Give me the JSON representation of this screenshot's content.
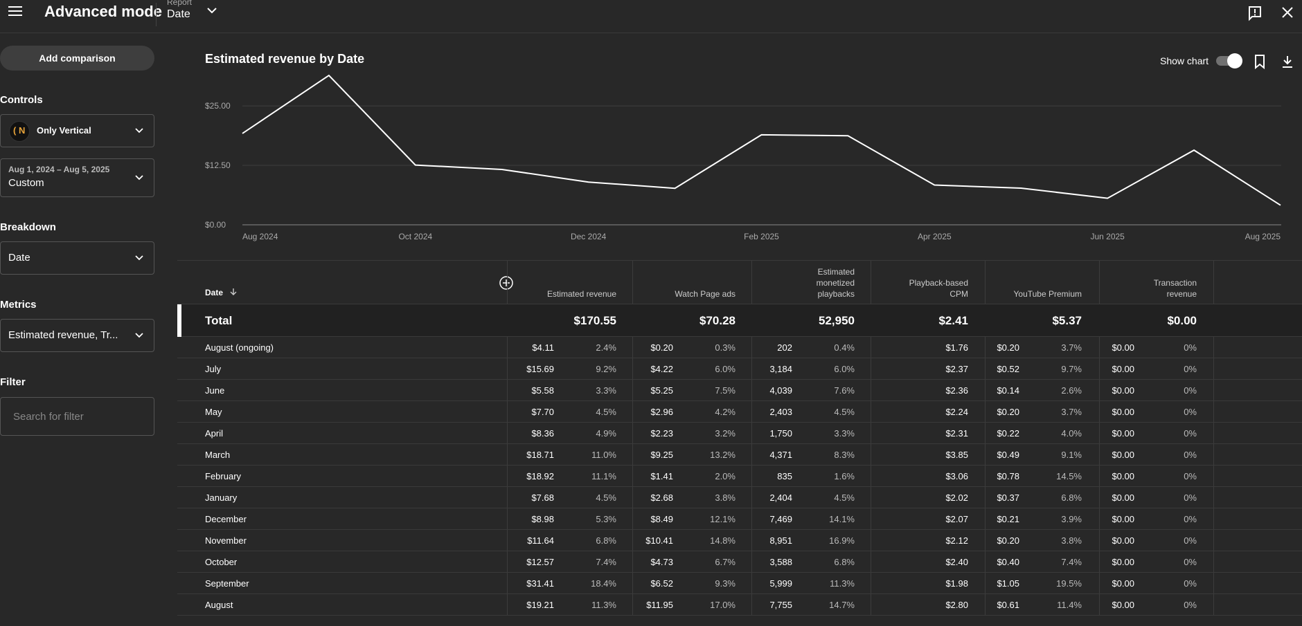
{
  "header": {
    "title": "Advanced mode",
    "report_label": "Report",
    "report_value": "Date"
  },
  "sidebar": {
    "add_comparison": "Add comparison",
    "controls_label": "Controls",
    "channel_name": "Only Vertical",
    "date_range_sub": "Aug 1, 2024 – Aug 5, 2025",
    "date_range_value": "Custom",
    "breakdown_label": "Breakdown",
    "breakdown_value": "Date",
    "metrics_label": "Metrics",
    "metrics_value": "Estimated revenue, Tr...",
    "filter_label": "Filter",
    "filter_placeholder": "Search for filter"
  },
  "chart_header": {
    "title": "Estimated revenue by Date",
    "show_chart": "Show chart"
  },
  "chart_data": {
    "type": "line",
    "title": "Estimated revenue by Date",
    "x": [
      "Aug 2024",
      "Sep 2024",
      "Oct 2024",
      "Nov 2024",
      "Dec 2024",
      "Jan 2025",
      "Feb 2025",
      "Mar 2025",
      "Apr 2025",
      "May 2025",
      "Jun 2025",
      "Jul 2025",
      "Aug 2025"
    ],
    "series": [
      {
        "values": [
          19.21,
          31.41,
          12.57,
          11.64,
          8.98,
          7.68,
          18.92,
          18.71,
          8.36,
          7.7,
          5.58,
          15.69,
          4.11
        ]
      }
    ],
    "x_tick_labels": [
      "Aug 2024",
      "Oct 2024",
      "Dec 2024",
      "Feb 2025",
      "Apr 2025",
      "Jun 2025",
      "Aug 2025"
    ],
    "y_tick_labels": [
      "$0.00",
      "$12.50",
      "$25.00"
    ],
    "y_ticks": [
      0,
      12.5,
      25
    ],
    "ylim": [
      0,
      31.41
    ],
    "grid": true,
    "line_color": "#ffffff"
  },
  "table": {
    "headers": {
      "date": "Date",
      "estimated_revenue": "Estimated revenue",
      "watch_page_ads": "Watch Page ads",
      "monetized_1": "Estimated",
      "monetized_2": "monetized",
      "monetized_3": "playbacks",
      "cpm_1": "Playback-based",
      "cpm_2": "CPM",
      "premium": "YouTube Premium",
      "transaction_1": "Transaction",
      "transaction_2": "revenue"
    },
    "total": {
      "label": "Total",
      "revenue": "$170.55",
      "ads": "$70.28",
      "playbacks": "52,950",
      "cpm": "$2.41",
      "premium": "$5.37",
      "transaction": "$0.00"
    },
    "rows": [
      {
        "date": "August (ongoing)",
        "revenue": "$4.11",
        "revenue_pct": "2.4%",
        "ads": "$0.20",
        "ads_pct": "0.3%",
        "playbacks": "202",
        "playbacks_pct": "0.4%",
        "cpm": "$1.76",
        "premium": "$0.20",
        "premium_pct": "3.7%",
        "transaction": "$0.00",
        "transaction_pct": "0%"
      },
      {
        "date": "July",
        "revenue": "$15.69",
        "revenue_pct": "9.2%",
        "ads": "$4.22",
        "ads_pct": "6.0%",
        "playbacks": "3,184",
        "playbacks_pct": "6.0%",
        "cpm": "$2.37",
        "premium": "$0.52",
        "premium_pct": "9.7%",
        "transaction": "$0.00",
        "transaction_pct": "0%"
      },
      {
        "date": "June",
        "revenue": "$5.58",
        "revenue_pct": "3.3%",
        "ads": "$5.25",
        "ads_pct": "7.5%",
        "playbacks": "4,039",
        "playbacks_pct": "7.6%",
        "cpm": "$2.36",
        "premium": "$0.14",
        "premium_pct": "2.6%",
        "transaction": "$0.00",
        "transaction_pct": "0%"
      },
      {
        "date": "May",
        "revenue": "$7.70",
        "revenue_pct": "4.5%",
        "ads": "$2.96",
        "ads_pct": "4.2%",
        "playbacks": "2,403",
        "playbacks_pct": "4.5%",
        "cpm": "$2.24",
        "premium": "$0.20",
        "premium_pct": "3.7%",
        "transaction": "$0.00",
        "transaction_pct": "0%"
      },
      {
        "date": "April",
        "revenue": "$8.36",
        "revenue_pct": "4.9%",
        "ads": "$2.23",
        "ads_pct": "3.2%",
        "playbacks": "1,750",
        "playbacks_pct": "3.3%",
        "cpm": "$2.31",
        "premium": "$0.22",
        "premium_pct": "4.0%",
        "transaction": "$0.00",
        "transaction_pct": "0%"
      },
      {
        "date": "March",
        "revenue": "$18.71",
        "revenue_pct": "11.0%",
        "ads": "$9.25",
        "ads_pct": "13.2%",
        "playbacks": "4,371",
        "playbacks_pct": "8.3%",
        "cpm": "$3.85",
        "premium": "$0.49",
        "premium_pct": "9.1%",
        "transaction": "$0.00",
        "transaction_pct": "0%"
      },
      {
        "date": "February",
        "revenue": "$18.92",
        "revenue_pct": "11.1%",
        "ads": "$1.41",
        "ads_pct": "2.0%",
        "playbacks": "835",
        "playbacks_pct": "1.6%",
        "cpm": "$3.06",
        "premium": "$0.78",
        "premium_pct": "14.5%",
        "transaction": "$0.00",
        "transaction_pct": "0%"
      },
      {
        "date": "January",
        "revenue": "$7.68",
        "revenue_pct": "4.5%",
        "ads": "$2.68",
        "ads_pct": "3.8%",
        "playbacks": "2,404",
        "playbacks_pct": "4.5%",
        "cpm": "$2.02",
        "premium": "$0.37",
        "premium_pct": "6.8%",
        "transaction": "$0.00",
        "transaction_pct": "0%"
      },
      {
        "date": "December",
        "revenue": "$8.98",
        "revenue_pct": "5.3%",
        "ads": "$8.49",
        "ads_pct": "12.1%",
        "playbacks": "7,469",
        "playbacks_pct": "14.1%",
        "cpm": "$2.07",
        "premium": "$0.21",
        "premium_pct": "3.9%",
        "transaction": "$0.00",
        "transaction_pct": "0%"
      },
      {
        "date": "November",
        "revenue": "$11.64",
        "revenue_pct": "6.8%",
        "ads": "$10.41",
        "ads_pct": "14.8%",
        "playbacks": "8,951",
        "playbacks_pct": "16.9%",
        "cpm": "$2.12",
        "premium": "$0.20",
        "premium_pct": "3.8%",
        "transaction": "$0.00",
        "transaction_pct": "0%"
      },
      {
        "date": "October",
        "revenue": "$12.57",
        "revenue_pct": "7.4%",
        "ads": "$4.73",
        "ads_pct": "6.7%",
        "playbacks": "3,588",
        "playbacks_pct": "6.8%",
        "cpm": "$2.40",
        "premium": "$0.40",
        "premium_pct": "7.4%",
        "transaction": "$0.00",
        "transaction_pct": "0%"
      },
      {
        "date": "September",
        "revenue": "$31.41",
        "revenue_pct": "18.4%",
        "ads": "$6.52",
        "ads_pct": "9.3%",
        "playbacks": "5,999",
        "playbacks_pct": "11.3%",
        "cpm": "$1.98",
        "premium": "$1.05",
        "premium_pct": "19.5%",
        "transaction": "$0.00",
        "transaction_pct": "0%"
      },
      {
        "date": "August",
        "revenue": "$19.21",
        "revenue_pct": "11.3%",
        "ads": "$11.95",
        "ads_pct": "17.0%",
        "playbacks": "7,755",
        "playbacks_pct": "14.7%",
        "cpm": "$2.80",
        "premium": "$0.61",
        "premium_pct": "11.4%",
        "transaction": "$0.00",
        "transaction_pct": "0%"
      }
    ]
  },
  "icons": {
    "menu": "menu-icon",
    "feedback": "feedback-icon",
    "close": "close-icon",
    "bookmark": "bookmark-icon",
    "download": "download-icon",
    "add_column": "add-circle-icon",
    "sort": "arrow-down-icon",
    "channel_avatar": "channel-avatar"
  }
}
